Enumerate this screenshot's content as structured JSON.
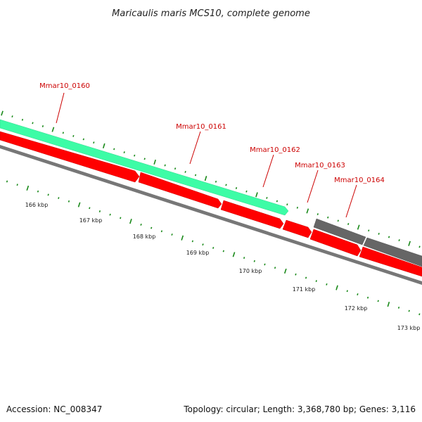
{
  "title": "Maricaulis maris MCS10, complete genome",
  "footer": {
    "accession": "Accession: NC_008347",
    "summary": "Topology: circular; Length: 3,368,780 bp; Genes: 3,116"
  },
  "colors": {
    "gene_forward": "#3dfca6",
    "gene_reverse": "#ff0000",
    "gene_other": "#666666",
    "backbone": "#777777",
    "label": "#cc0000",
    "tick": "#1a8a1a"
  },
  "genes": [
    {
      "id": "Mmar10_0160",
      "label": "Mmar10_0160"
    },
    {
      "id": "Mmar10_0161",
      "label": "Mmar10_0161"
    },
    {
      "id": "Mmar10_0162",
      "label": "Mmar10_0162"
    },
    {
      "id": "Mmar10_0163",
      "label": "Mmar10_0163"
    },
    {
      "id": "Mmar10_0164",
      "label": "Mmar10_0164"
    }
  ],
  "scale": {
    "labels": [
      "166 kbp",
      "167 kbp",
      "168 kbp",
      "169 kbp",
      "170 kbp",
      "171 kbp",
      "172 kbp",
      "173 kbp"
    ]
  }
}
